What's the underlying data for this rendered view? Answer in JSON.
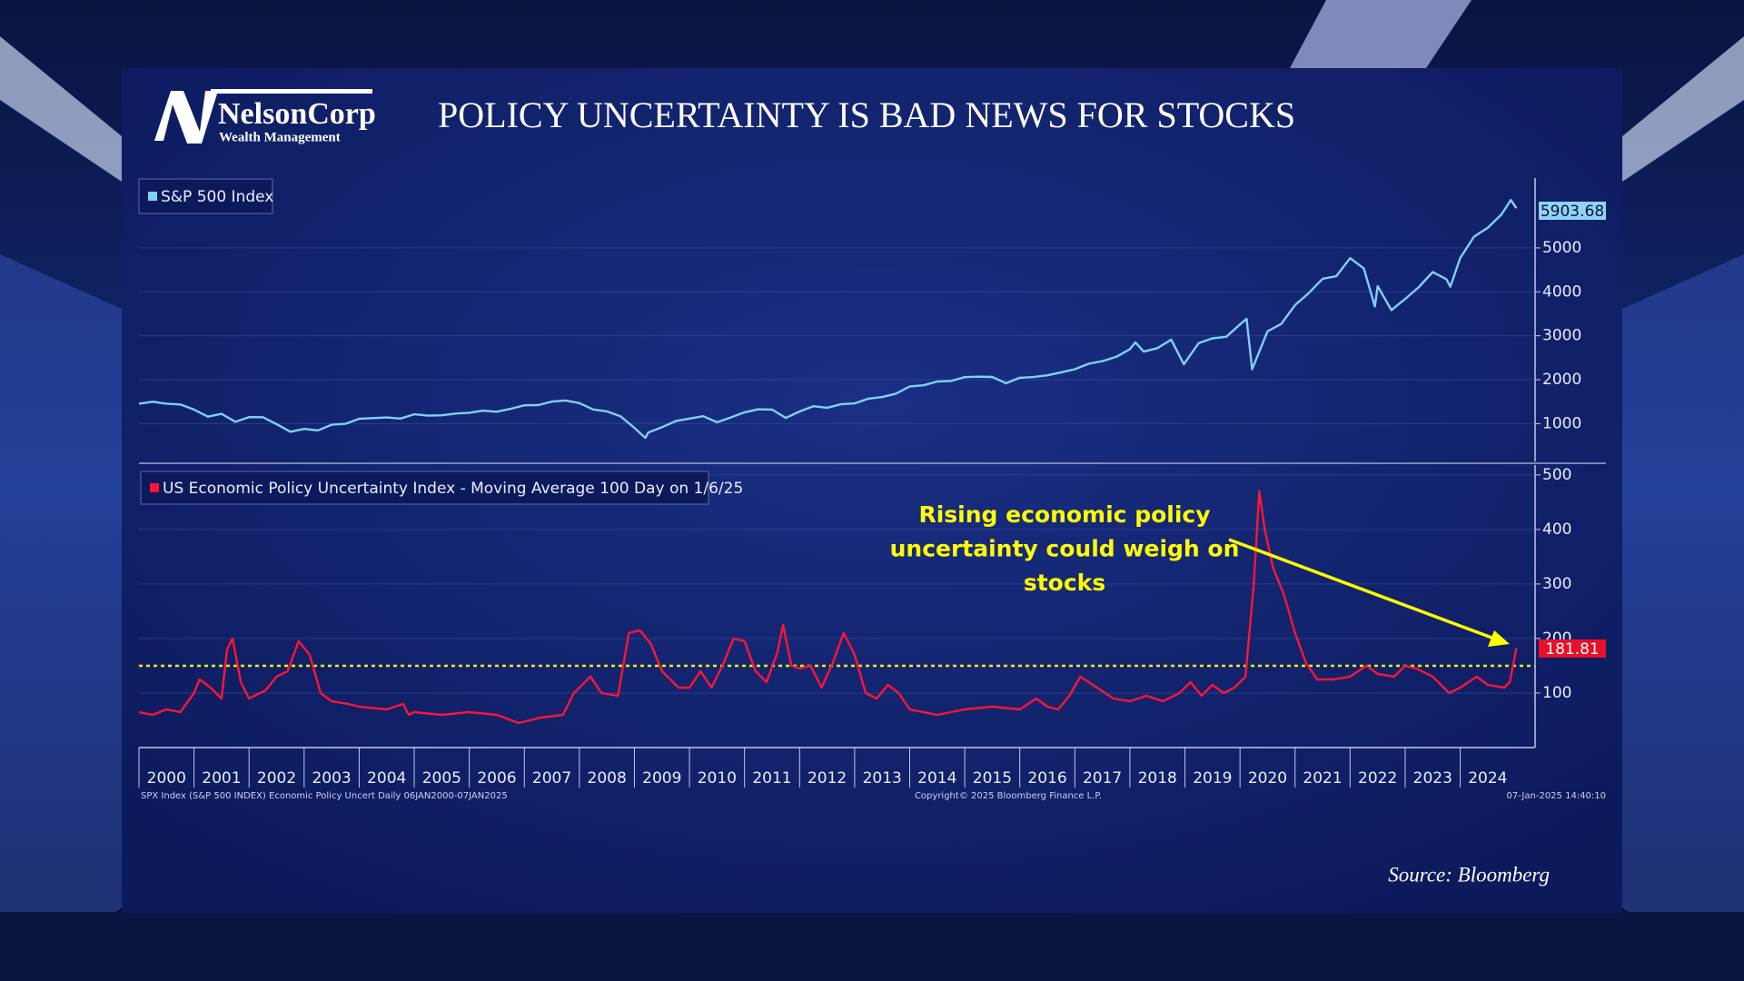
{
  "header": {
    "logo_name": "NelsonCorp",
    "logo_subtitle": "Wealth Management",
    "title": "POLICY UNCERTAINTY IS BAD NEWS FOR STOCKS"
  },
  "footer": {
    "left": "SPX Index (S&P 500 INDEX) Economic Policy Uncert  Daily 06JAN2000-07JAN2025",
    "center": "Copyright© 2025 Bloomberg Finance L.P.",
    "right": "07-Jan-2025 14:40:10",
    "source": "Source: Bloomberg"
  },
  "chart_data": [
    {
      "type": "line",
      "grid": true,
      "xlim": [
        2000,
        2025.36
      ],
      "ylim": [
        140,
        6590
      ],
      "yticks": [
        1000,
        2000,
        3000,
        4000,
        5000
      ],
      "series": [
        {
          "name": "S&P 500 Index",
          "color": "#7fd0f5",
          "x": [
            2000.0,
            2000.25,
            2000.5,
            2000.75,
            2001.0,
            2001.25,
            2001.5,
            2001.75,
            2002.0,
            2002.25,
            2002.5,
            2002.75,
            2003.0,
            2003.25,
            2003.5,
            2003.75,
            2004.0,
            2004.25,
            2004.5,
            2004.75,
            2005.0,
            2005.25,
            2005.5,
            2005.75,
            2006.0,
            2006.25,
            2006.5,
            2006.75,
            2007.0,
            2007.25,
            2007.5,
            2007.75,
            2008.0,
            2008.25,
            2008.5,
            2008.75,
            2009.0,
            2009.2,
            2009.25,
            2009.5,
            2009.75,
            2010.0,
            2010.25,
            2010.5,
            2010.75,
            2011.0,
            2011.25,
            2011.5,
            2011.75,
            2012.0,
            2012.25,
            2012.5,
            2012.75,
            2013.0,
            2013.25,
            2013.5,
            2013.75,
            2014.0,
            2014.25,
            2014.5,
            2014.75,
            2015.0,
            2015.25,
            2015.5,
            2015.75,
            2016.0,
            2016.25,
            2016.5,
            2016.75,
            2017.0,
            2017.25,
            2017.5,
            2017.75,
            2018.0,
            2018.1,
            2018.25,
            2018.5,
            2018.75,
            2018.98,
            2019.25,
            2019.5,
            2019.75,
            2020.0,
            2020.12,
            2020.22,
            2020.5,
            2020.75,
            2021.0,
            2021.25,
            2021.5,
            2021.75,
            2022.0,
            2022.25,
            2022.45,
            2022.5,
            2022.75,
            2023.0,
            2023.25,
            2023.5,
            2023.75,
            2023.82,
            2024.0,
            2024.25,
            2024.5,
            2024.75,
            2024.92,
            2025.02
          ],
          "values": [
            1455,
            1498,
            1455,
            1436,
            1320,
            1160,
            1224,
            1041,
            1148,
            1147,
            990,
            815,
            880,
            848,
            975,
            996,
            1112,
            1126,
            1141,
            1115,
            1212,
            1181,
            1191,
            1229,
            1248,
            1295,
            1270,
            1336,
            1418,
            1421,
            1503,
            1527,
            1468,
            1323,
            1280,
            1166,
            903,
            676,
            798,
            919,
            1057,
            1115,
            1169,
            1031,
            1141,
            1258,
            1326,
            1320,
            1131,
            1277,
            1397,
            1362,
            1440,
            1462,
            1569,
            1606,
            1682,
            1848,
            1872,
            1960,
            1972,
            2058,
            2068,
            2063,
            1920,
            2044,
            2060,
            2099,
            2168,
            2239,
            2363,
            2423,
            2519,
            2695,
            2850,
            2640,
            2718,
            2913,
            2351,
            2834,
            2941,
            2976,
            3258,
            3386,
            2237,
            3100,
            3270,
            3700,
            3972,
            4297,
            4357,
            4766,
            4530,
            3667,
            4130,
            3585,
            3839,
            4109,
            4450,
            4288,
            4117,
            4770,
            5254,
            5460,
            5762,
            6090,
            5903.68
          ]
        }
      ]
    },
    {
      "type": "line",
      "grid": true,
      "xlim": [
        2000,
        2025.36
      ],
      "ylim": [
        0,
        518
      ],
      "yticks": [
        100,
        200,
        300,
        400,
        500
      ],
      "xticks": [
        2000,
        2001,
        2002,
        2003,
        2004,
        2005,
        2006,
        2007,
        2008,
        2009,
        2010,
        2011,
        2012,
        2013,
        2014,
        2015,
        2016,
        2017,
        2018,
        2019,
        2020,
        2021,
        2022,
        2023,
        2024
      ],
      "reference_line": 150,
      "annotation": [
        "Rising economic policy",
        "uncertainty could weigh on",
        "stocks"
      ],
      "series": [
        {
          "name": "US Economic Policy Uncertainty Index - Moving Average 100 Day on 1/6/25",
          "color": "#ff1535",
          "x": [
            2000.0,
            2000.25,
            2000.5,
            2000.75,
            2001.0,
            2001.1,
            2001.3,
            2001.5,
            2001.6,
            2001.7,
            2001.85,
            2002.0,
            2002.3,
            2002.5,
            2002.7,
            2002.9,
            2003.1,
            2003.3,
            2003.5,
            2003.8,
            2004.0,
            2004.5,
            2004.8,
            2004.9,
            2005.0,
            2005.5,
            2006.0,
            2006.5,
            2006.9,
            2007.3,
            2007.7,
            2007.9,
            2008.2,
            2008.4,
            2008.7,
            2008.9,
            2009.1,
            2009.3,
            2009.5,
            2009.8,
            2010.0,
            2010.2,
            2010.4,
            2010.6,
            2010.8,
            2011.0,
            2011.2,
            2011.4,
            2011.6,
            2011.7,
            2011.85,
            2012.0,
            2012.2,
            2012.4,
            2012.6,
            2012.8,
            2013.0,
            2013.2,
            2013.4,
            2013.6,
            2013.8,
            2014.0,
            2014.5,
            2015.0,
            2015.5,
            2016.0,
            2016.3,
            2016.5,
            2016.7,
            2016.9,
            2017.1,
            2017.4,
            2017.7,
            2018.0,
            2018.3,
            2018.6,
            2018.9,
            2019.1,
            2019.3,
            2019.5,
            2019.7,
            2019.9,
            2020.1,
            2020.25,
            2020.35,
            2020.45,
            2020.6,
            2020.8,
            2021.0,
            2021.2,
            2021.4,
            2021.7,
            2022.0,
            2022.3,
            2022.5,
            2022.8,
            2023.0,
            2023.2,
            2023.5,
            2023.8,
            2024.0,
            2024.3,
            2024.5,
            2024.8,
            2024.9,
            2025.02
          ],
          "values": [
            65,
            60,
            70,
            65,
            100,
            125,
            110,
            90,
            180,
            200,
            120,
            90,
            105,
            130,
            140,
            195,
            170,
            100,
            85,
            80,
            75,
            70,
            80,
            60,
            65,
            60,
            65,
            60,
            45,
            55,
            60,
            100,
            130,
            100,
            95,
            210,
            215,
            190,
            140,
            110,
            110,
            140,
            110,
            150,
            200,
            195,
            140,
            120,
            175,
            225,
            150,
            145,
            150,
            110,
            155,
            210,
            170,
            100,
            90,
            115,
            100,
            70,
            60,
            70,
            75,
            70,
            90,
            75,
            70,
            95,
            130,
            110,
            90,
            85,
            95,
            85,
            100,
            120,
            95,
            115,
            100,
            110,
            130,
            300,
            470,
            400,
            330,
            280,
            210,
            155,
            125,
            125,
            130,
            150,
            135,
            130,
            150,
            145,
            130,
            100,
            110,
            130,
            115,
            110,
            120,
            181.81
          ]
        }
      ]
    }
  ]
}
